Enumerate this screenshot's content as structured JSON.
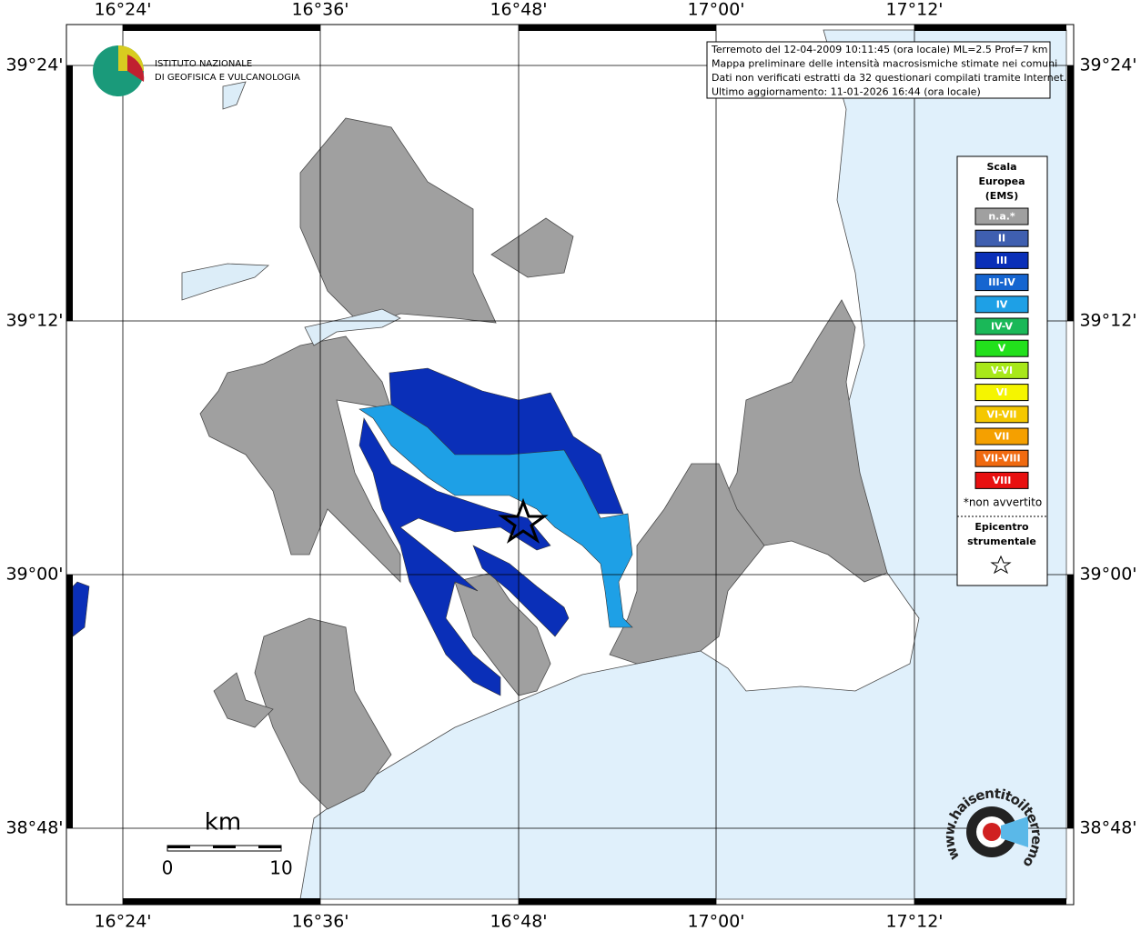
{
  "header": {
    "lines": [
      "Terremoto del 12-04-2009 10:11:45 (ora locale) ML=2.5 Prof=7 km",
      "Mappa preliminare delle intensità macrosismiche stimate nei comuni",
      "Dati non verificati estratti da 32 questionari compilati tramite Internet.",
      "Ultimo aggiornamento: 11-01-2026 16:44 (ora locale)"
    ]
  },
  "logo": {
    "lines": [
      "ISTITUTO NAZIONALE",
      "DI GEOFISICA E VULCANOLOGIA"
    ]
  },
  "axes": {
    "lon_labels": [
      "16°24'",
      "16°36'",
      "16°48'",
      "17°00'",
      "17°12'"
    ],
    "lat_labels": [
      "39°24'",
      "39°12'",
      "39°00'",
      "38°48'"
    ]
  },
  "legend": {
    "title": [
      "Scala",
      "Europea",
      "(EMS)"
    ],
    "items": [
      {
        "label": "n.a.*",
        "color": "#a0a0a0"
      },
      {
        "label": "II",
        "color": "#3f5fb0"
      },
      {
        "label": "III",
        "color": "#0a2fb8"
      },
      {
        "label": "III-IV",
        "color": "#1565d0"
      },
      {
        "label": "IV",
        "color": "#1ea0e6"
      },
      {
        "label": "IV-V",
        "color": "#1ab858"
      },
      {
        "label": "V",
        "color": "#22e01c"
      },
      {
        "label": "V-VI",
        "color": "#a8e81a"
      },
      {
        "label": "VI",
        "color": "#f5f500"
      },
      {
        "label": "VI-VII",
        "color": "#f5c800"
      },
      {
        "label": "VII",
        "color": "#f5a000"
      },
      {
        "label": "VII-VIII",
        "color": "#f06a10"
      },
      {
        "label": "VIII",
        "color": "#e81010"
      }
    ],
    "note": "*non avvertito",
    "epicenter_title": [
      "Epicentro",
      "strumentale"
    ]
  },
  "scale_bar": {
    "unit": "km",
    "labels": [
      "0",
      "10"
    ]
  },
  "watermark": "www.haisentitoilterremoto.it"
}
